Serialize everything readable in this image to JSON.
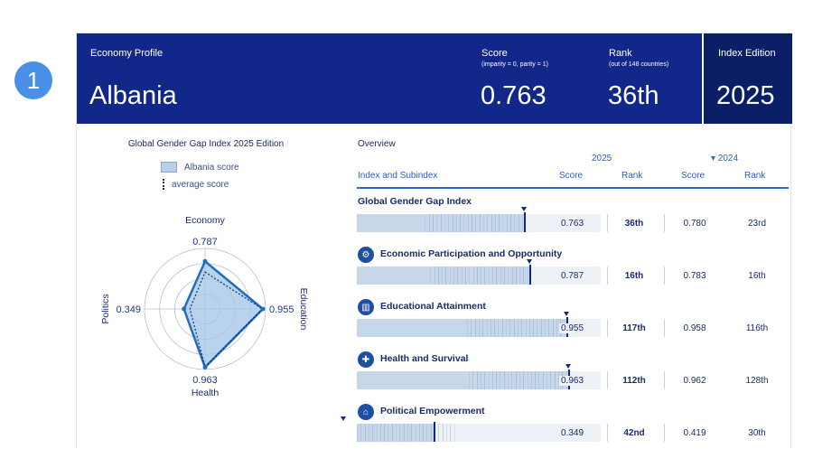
{
  "badge": "1",
  "header": {
    "economy_label": "Economy Profile",
    "country": "Albania",
    "score_label": "Score",
    "score_sub": "(imparity = 0, parity = 1)",
    "score_value": "0.763",
    "rank_label": "Rank",
    "rank_sub": "(out of 148 countries)",
    "rank_value": "36th",
    "edition_label": "Index Edition",
    "edition_value": "2025"
  },
  "radar": {
    "title": "Global Gender Gap Index 2025 Edition",
    "legend_score": "Albania score",
    "legend_avg": "average score",
    "axes": [
      {
        "name": "Economy",
        "value": 0.787,
        "label": "0.787"
      },
      {
        "name": "Education",
        "value": 0.955,
        "label": "0.955"
      },
      {
        "name": "Health",
        "value": 0.963,
        "label": "0.963"
      },
      {
        "name": "Politics",
        "value": 0.349,
        "label": "0.349"
      }
    ],
    "averages": [
      0.61,
      0.95,
      0.96,
      0.25
    ],
    "colors": {
      "fill": "#a8c8e8",
      "stroke": "#1e6fc0",
      "avg": "#1a2a6c",
      "grid": "#b8bfd0"
    }
  },
  "overview": {
    "title": "Overview",
    "year_current": "2025",
    "year_prev": "▾ 2024",
    "col_index": "Index and Subindex",
    "col_score": "Score",
    "col_rank": "Rank",
    "col_score_prev": "Score",
    "col_rank_prev": "Rank",
    "rows": [
      {
        "title": "Global Gender Gap Index",
        "icon": "",
        "score": 0.763,
        "score_label": "0.763",
        "rank": "36th",
        "prev_score": "0.780",
        "prev_rank": "23rd"
      },
      {
        "title": "Economic Participation and Opportunity",
        "icon": "economy-icon",
        "score": 0.787,
        "score_label": "0.787",
        "rank": "16th",
        "prev_score": "0.783",
        "prev_rank": "16th"
      },
      {
        "title": "Educational Attainment",
        "icon": "education-icon",
        "score": 0.955,
        "score_label": "0.955",
        "rank": "117th",
        "prev_score": "0.958",
        "prev_rank": "116th"
      },
      {
        "title": "Health and Survival",
        "icon": "health-icon",
        "score": 0.963,
        "score_label": "0.963",
        "rank": "112th",
        "prev_score": "0.962",
        "prev_rank": "128th"
      },
      {
        "title": "Political Empowerment",
        "icon": "politics-icon",
        "score": 0.349,
        "score_label": "0.349",
        "rank": "42nd",
        "prev_score": "0.419",
        "prev_rank": "30th"
      }
    ]
  }
}
